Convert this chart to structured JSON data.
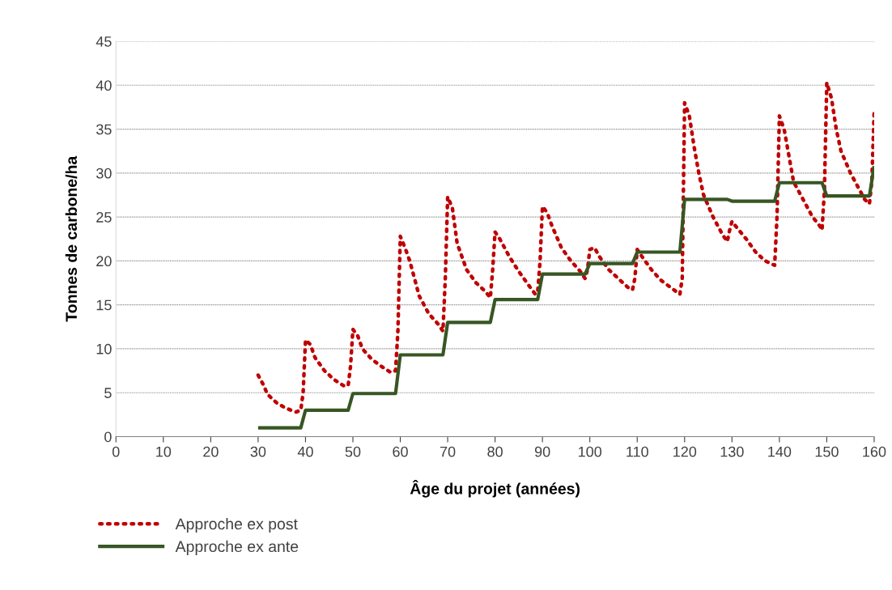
{
  "chart_data": {
    "type": "line",
    "xlabel": "Âge du projet (années)",
    "ylabel": "Tonnes de carbone/ha",
    "xlim": [
      0,
      160
    ],
    "xticks": [
      0,
      10,
      20,
      30,
      40,
      50,
      60,
      70,
      80,
      90,
      100,
      110,
      120,
      130,
      140,
      150,
      160
    ],
    "ylim": [
      0,
      45
    ],
    "yticks": [
      0,
      5,
      10,
      15,
      20,
      25,
      30,
      35,
      40,
      45
    ],
    "grid": "y",
    "legend": "bottom left",
    "marker": "none",
    "series": [
      {
        "name": "Approche ex post",
        "color": "#c00000",
        "line_style": "dotted",
        "x": [
          30,
          31,
          32,
          34,
          36,
          38,
          39,
          39.5,
          40,
          41,
          42,
          44,
          46,
          48,
          49,
          49.5,
          50,
          51,
          52,
          54,
          56,
          58,
          59,
          59.5,
          60,
          61,
          62,
          64,
          66,
          68,
          69,
          69.5,
          70,
          71,
          72,
          74,
          76,
          78,
          79,
          79.5,
          80,
          81,
          83,
          85,
          87,
          88.5,
          89,
          89.5,
          90,
          91,
          92,
          94,
          96,
          98,
          99,
          99.5,
          100,
          101,
          102,
          104,
          106,
          108,
          109,
          109.5,
          110,
          111,
          113,
          115,
          117,
          119,
          119.5,
          120,
          121,
          122,
          123,
          124,
          126,
          128,
          129,
          129.5,
          130,
          131,
          133,
          135,
          137,
          139,
          139.5,
          140,
          141,
          142,
          143,
          145,
          147,
          148.5,
          149,
          149.5,
          150,
          151,
          152,
          153,
          155,
          157,
          158,
          159,
          159.5,
          160
        ],
        "values": [
          7,
          6,
          4.8,
          3.8,
          3.2,
          2.8,
          3,
          5,
          11,
          10.5,
          9,
          7.5,
          6.5,
          5.8,
          5.8,
          8,
          12.2,
          11.5,
          10,
          8.8,
          8,
          7.3,
          7.5,
          12,
          22.8,
          21.5,
          20,
          16,
          14,
          12.8,
          12,
          18,
          27.3,
          26,
          22,
          19,
          17.5,
          16.5,
          15.8,
          19,
          23.3,
          22.5,
          20.5,
          18.8,
          17.3,
          16.2,
          16.5,
          20,
          26.2,
          25.5,
          24,
          21.5,
          20,
          18.8,
          18,
          19,
          21.3,
          21.5,
          20.5,
          19,
          18,
          17,
          16.7,
          18,
          21.3,
          20.5,
          19,
          17.8,
          17,
          16.2,
          18,
          38,
          36.5,
          33,
          30,
          27.5,
          25,
          23,
          22.2,
          23.5,
          24.5,
          23.8,
          22.5,
          21,
          20,
          19.5,
          25,
          36.5,
          35,
          32,
          29,
          27,
          25,
          24,
          23.5,
          28,
          40.3,
          38.5,
          35,
          32.5,
          30,
          28,
          27,
          26.5,
          29,
          37
        ]
      },
      {
        "name": "Approche ex ante",
        "color": "#375623",
        "line_style": "solid",
        "x": [
          30,
          39,
          40,
          49,
          50,
          59,
          60,
          69,
          70,
          79,
          80,
          89,
          90,
          99,
          100,
          109,
          110,
          119,
          120,
          129,
          130,
          139,
          140,
          149,
          150,
          159,
          160
        ],
        "values": [
          1,
          1,
          3,
          3,
          4.9,
          4.9,
          9.3,
          9.3,
          13,
          13,
          15.6,
          15.6,
          18.5,
          18.5,
          19.7,
          19.7,
          21,
          21,
          27,
          27,
          26.8,
          26.8,
          28.9,
          28.9,
          27.4,
          27.4,
          30.8
        ]
      }
    ]
  }
}
